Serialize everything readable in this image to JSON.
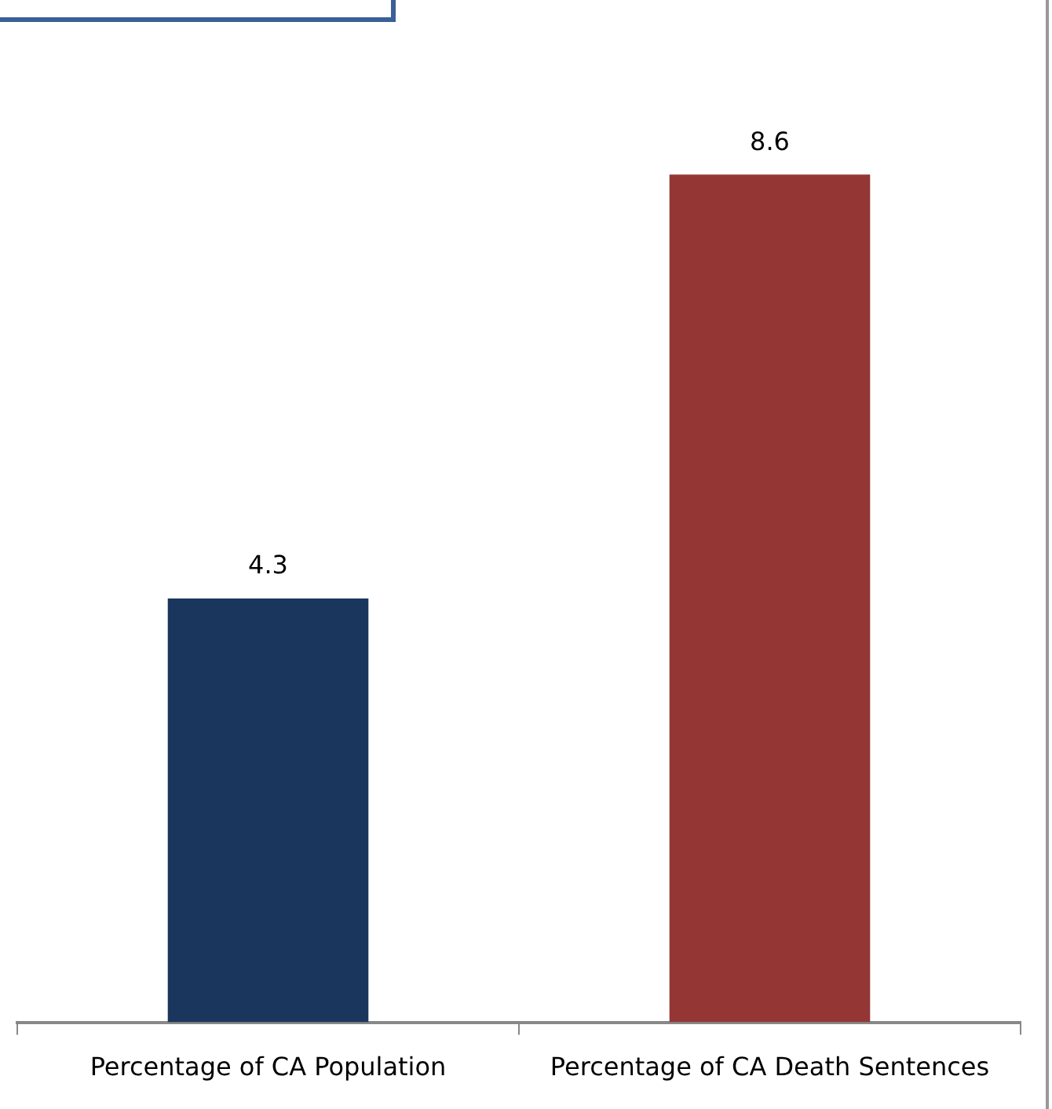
{
  "chart_data": {
    "type": "bar",
    "categories": [
      "Percentage of CA Population",
      "Percentage of CA Death Sentences"
    ],
    "values": [
      4.3,
      8.6
    ],
    "colors": [
      "#1b365d",
      "#943634"
    ],
    "data_labels": true,
    "tick_labels": "x",
    "grid": false,
    "legend": false
  }
}
